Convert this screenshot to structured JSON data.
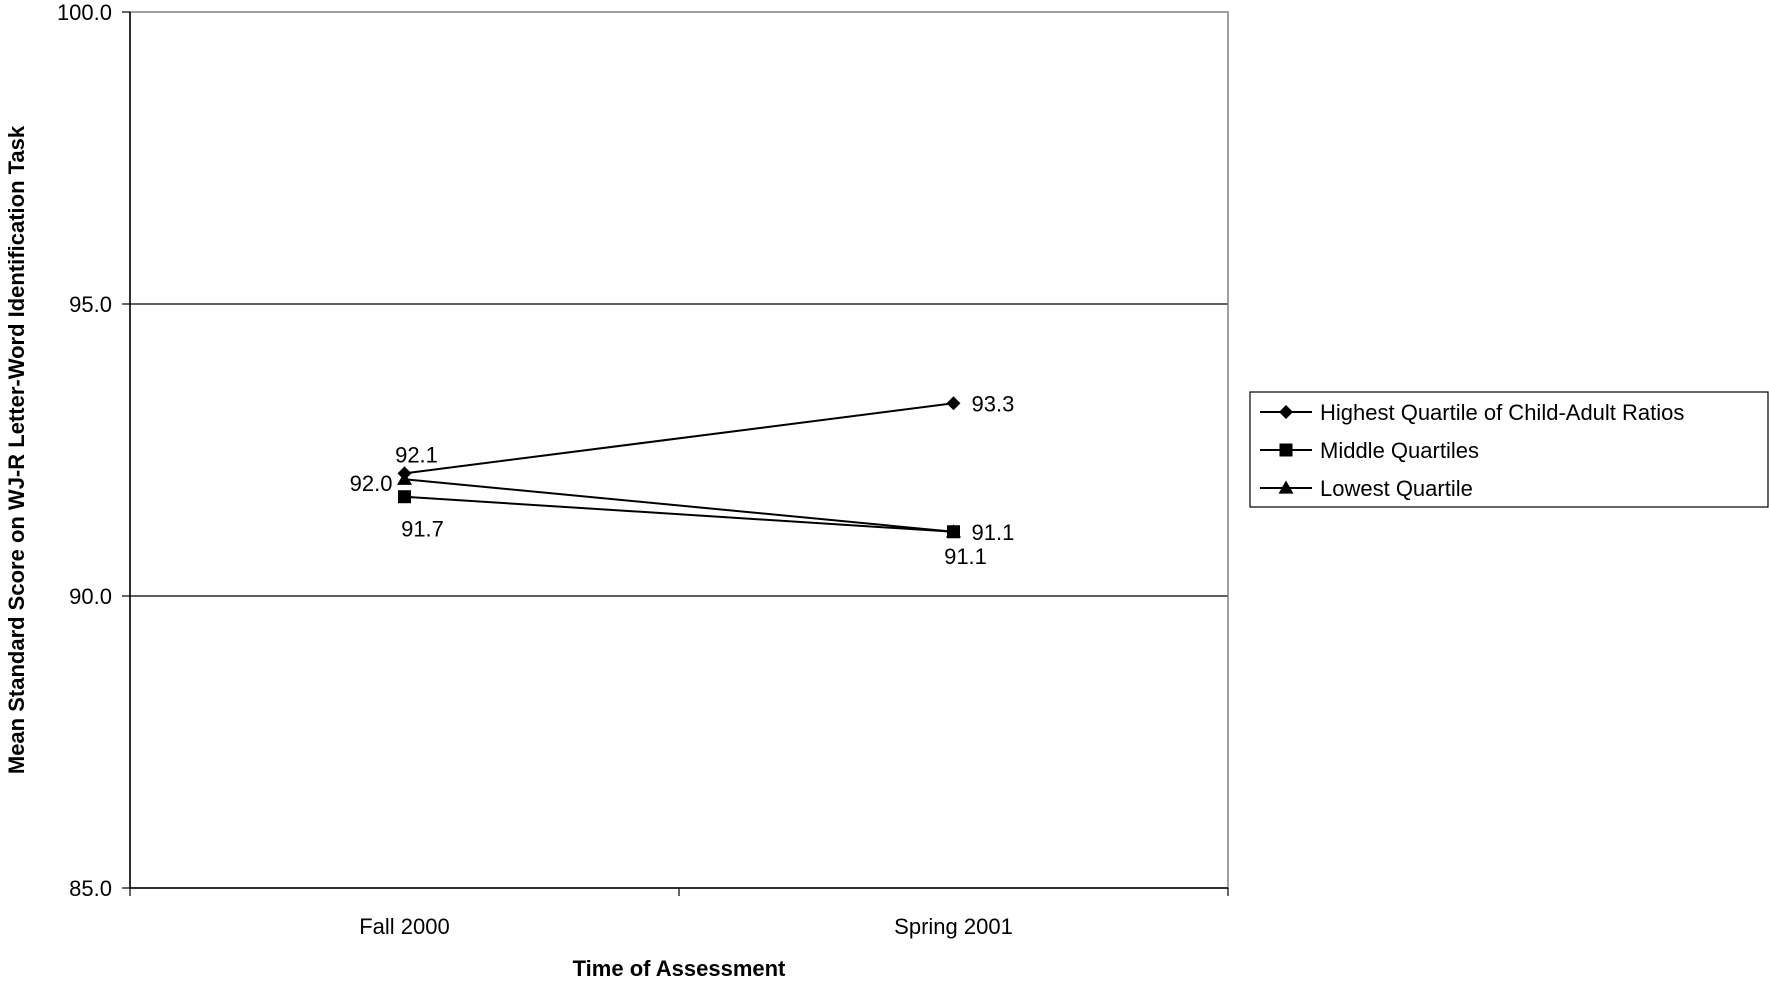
{
  "chart_data": {
    "type": "line",
    "title": "",
    "xlabel": "Time of Assessment",
    "ylabel": "Mean Standard Score on WJ-R Letter-Word Identification Task",
    "categories": [
      "Fall 2000",
      "Spring 2001"
    ],
    "ylim": [
      85.0,
      100.0
    ],
    "yticks": [
      "85.0",
      "90.0",
      "95.0",
      "100.0"
    ],
    "grid": "horizontal",
    "legend_position": "right",
    "series": [
      {
        "name": "Highest Quartile of Child-Adult Ratios",
        "marker": "diamond",
        "values": [
          92.1,
          93.3
        ],
        "labels": [
          "92.1",
          "93.3"
        ]
      },
      {
        "name": "Middle Quartiles",
        "marker": "square",
        "values": [
          91.7,
          91.1
        ],
        "labels": [
          "91.7",
          "91.1"
        ]
      },
      {
        "name": "Lowest Quartile",
        "marker": "triangle",
        "values": [
          92.0,
          91.1
        ],
        "labels": [
          "92.0",
          "91.1"
        ]
      }
    ],
    "colors": {
      "line": "#000000",
      "grid": "#000000",
      "plot_border": "#808080"
    }
  }
}
